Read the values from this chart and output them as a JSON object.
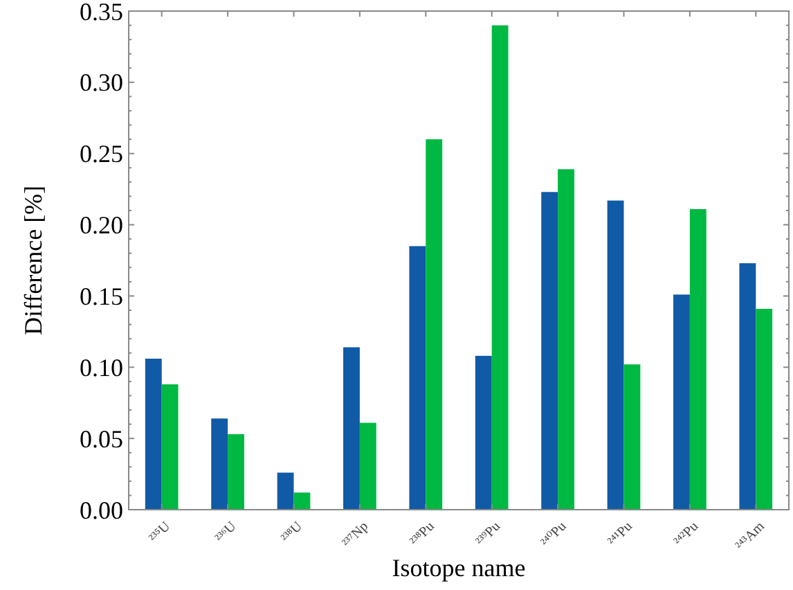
{
  "chart_data": {
    "type": "bar",
    "xlabel": "Isotope name",
    "ylabel": "Difference [%]",
    "categories": [
      "²³⁵U",
      "²³⁶U",
      "²³⁸U",
      "²³⁷Np",
      "²³⁸Pu",
      "²³⁹Pu",
      "²⁴⁰Pu",
      "²⁴¹Pu",
      "²⁴²Pu",
      "²⁴³Am"
    ],
    "series": [
      {
        "color": "#105aa6",
        "values": [
          0.106,
          0.064,
          0.026,
          0.114,
          0.185,
          0.108,
          0.223,
          0.217,
          0.151,
          0.173
        ]
      },
      {
        "color": "#00b942",
        "values": [
          0.088,
          0.053,
          0.012,
          0.061,
          0.26,
          0.34,
          0.239,
          0.102,
          0.211,
          0.141
        ]
      }
    ],
    "ylim": [
      0,
      0.35
    ],
    "yticks": [
      {
        "value": 0,
        "label": "0.00"
      },
      {
        "value": 0.05,
        "label": "0.05"
      },
      {
        "value": 0.1,
        "label": "0.10"
      },
      {
        "value": 0.15,
        "label": "0.15"
      },
      {
        "value": 0.2,
        "label": "0.20"
      },
      {
        "value": 0.25,
        "label": "0.25"
      },
      {
        "value": 0.3,
        "label": "0.30"
      },
      {
        "value": 0.35,
        "label": "0.35"
      }
    ],
    "grid": false
  }
}
